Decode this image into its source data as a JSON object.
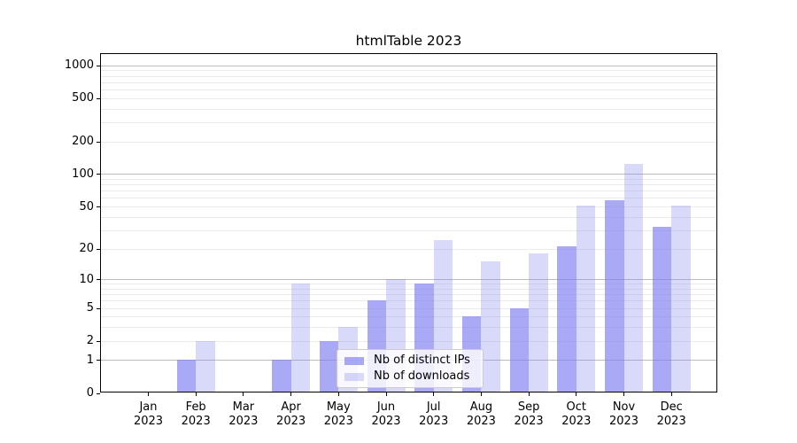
{
  "chart_data": {
    "type": "bar",
    "title": "htmlTable 2023",
    "year_label": "2023",
    "categories": [
      "Jan",
      "Feb",
      "Mar",
      "Apr",
      "May",
      "Jun",
      "Jul",
      "Aug",
      "Sep",
      "Oct",
      "Nov",
      "Dec"
    ],
    "series": [
      {
        "name": "Nb of distinct IPs",
        "color": "#7b7bf0",
        "alpha": 0.65,
        "appearance_color": "#a9a9f5",
        "values": [
          0,
          1,
          0,
          1,
          2,
          6,
          9,
          4,
          5,
          21,
          57,
          32
        ]
      },
      {
        "name": "Nb of downloads",
        "color": "#8080ee",
        "alpha": 0.3,
        "appearance_color": "#d9d9fa",
        "values": [
          0,
          2,
          0,
          9,
          3,
          10,
          24,
          15,
          18,
          51,
          125,
          51
        ]
      }
    ],
    "xlabel": "",
    "ylabel": "",
    "y_axis": {
      "scale": "log10(1+v)",
      "ticks": [
        0,
        1,
        2,
        5,
        10,
        20,
        50,
        100,
        200,
        500,
        1000
      ],
      "range": [
        0,
        1290
      ]
    },
    "grid": {
      "on": true,
      "major_values": [
        1,
        10,
        100,
        1000
      ],
      "minor_values": [
        2,
        3,
        4,
        5,
        6,
        7,
        8,
        9,
        20,
        30,
        40,
        50,
        60,
        70,
        80,
        90,
        200,
        300,
        400,
        500,
        600,
        700,
        800,
        900
      ],
      "major_color": "#bcbcbc",
      "minor_color": "#ebebeb"
    },
    "legend": {
      "position": "lower center",
      "frame_color": "#cccccc"
    },
    "spine_color": "#000000",
    "background_color": "#ffffff"
  }
}
